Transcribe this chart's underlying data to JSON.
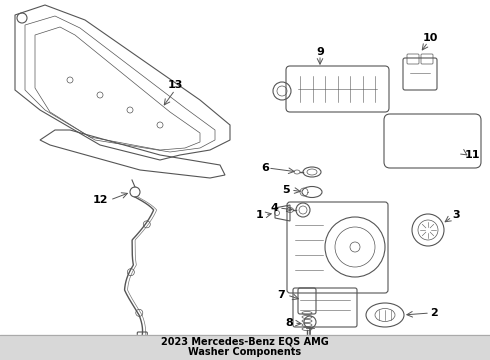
{
  "bg_color": "#ffffff",
  "line_color": "#555555",
  "text_color": "#000000",
  "fig_width": 4.9,
  "fig_height": 3.6,
  "dpi": 100,
  "title_line1": "2023 Mercedes-Benz EQS AMG",
  "title_line2": "Washer Components"
}
